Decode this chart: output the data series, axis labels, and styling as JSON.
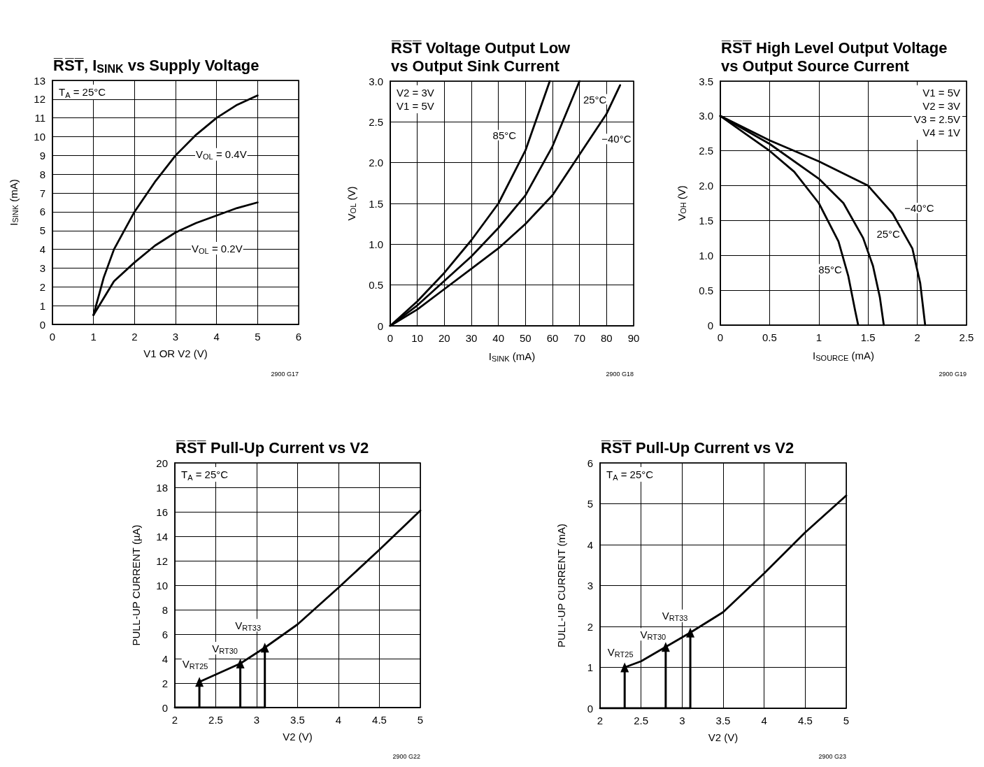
{
  "chart_data": [
    {
      "type": "line",
      "title": "R̅S̅T̅, I$_{SINK}$ vs Supply Voltage",
      "xlabel": "V1 OR V2 (V)",
      "ylabel": "I$_{SINK}$ (mA)",
      "xlim": [
        0,
        6
      ],
      "ylim": [
        0,
        13
      ],
      "xticks": [
        0,
        1,
        2,
        3,
        4,
        5,
        6
      ],
      "yticks": [
        0,
        1,
        2,
        3,
        4,
        5,
        6,
        7,
        8,
        9,
        10,
        11,
        12,
        13
      ],
      "grid": true,
      "series": [
        {
          "color": "#000000",
          "x": [
            1,
            1.25,
            1.5,
            2,
            2.5,
            3,
            3.5,
            4,
            4.5,
            5
          ],
          "values": [
            0.5,
            2.5,
            4,
            6,
            7.6,
            9,
            10.1,
            11,
            11.7,
            12.2
          ]
        },
        {
          "color": "#000000",
          "x": [
            1,
            1.5,
            2,
            2.5,
            3,
            3.5,
            4,
            4.5,
            5
          ],
          "values": [
            0.5,
            2.3,
            3.3,
            4.2,
            4.9,
            5.4,
            5.8,
            6.2,
            6.5
          ]
        }
      ],
      "annotations": [
        "T$_{A}$ = 25°C",
        "2900 G17",
        {
          "text": "V$_{OL}$ = 0.4V",
          "x": 3.5,
          "y": 10.1
        },
        {
          "text": "V$_{OL}$ = 0.2V",
          "x": 3.5,
          "y": 5.4
        }
      ]
    },
    {
      "type": "line",
      "title": "R̅S̅T̅ Voltage Output Low\nvs Output Sink Current",
      "xlabel": "I$_{SINK}$ (mA)",
      "ylabel": "V$_{OL}$ (V)",
      "xlim": [
        0,
        90
      ],
      "ylim": [
        0,
        3
      ],
      "xticks": [
        0,
        10,
        20,
        30,
        40,
        50,
        60,
        70,
        80,
        90
      ],
      "yticks": [
        0,
        {
          "value": 0.5,
          "label": "0.5"
        },
        {
          "value": 1,
          "label": "1.0"
        },
        {
          "value": 1.5,
          "label": "1.5"
        },
        {
          "value": 2,
          "label": "2.0"
        },
        {
          "value": 2.5,
          "label": "2.5"
        },
        {
          "value": 3,
          "label": "3.0"
        }
      ],
      "grid": true,
      "series": [
        {
          "color": "#000000",
          "x": [
            0,
            10,
            20,
            30,
            40,
            50,
            59
          ],
          "values": [
            0,
            0.3,
            0.65,
            1.05,
            1.5,
            2.15,
            3.0
          ]
        },
        {
          "color": "#000000",
          "x": [
            0,
            10,
            20,
            30,
            40,
            50,
            60,
            70
          ],
          "values": [
            0,
            0.25,
            0.55,
            0.85,
            1.2,
            1.6,
            2.2,
            3.0
          ]
        },
        {
          "color": "#000000",
          "x": [
            0,
            10,
            20,
            30,
            40,
            50,
            60,
            70,
            80,
            85
          ],
          "values": [
            0,
            0.2,
            0.45,
            0.7,
            0.95,
            1.25,
            1.6,
            2.1,
            2.6,
            2.95
          ]
        }
      ],
      "annotations": [
        "V2 = 3V\nV1 = 5V",
        "2900 G18",
        {
          "text": "85°C",
          "x": 50,
          "y": 2.15
        },
        {
          "text": "25°C",
          "x": 70,
          "y": 3.0
        },
        {
          "text": "−40°C",
          "x": 80,
          "y": 2.6
        }
      ]
    },
    {
      "type": "line",
      "title": "R̅S̅T̅ High Level Output Voltage\nvs Output Source Current",
      "xlabel": "I$_{SOURCE}$ (mA)",
      "ylabel": "V$_{OH}$ (V)",
      "xlim": [
        0,
        2.5
      ],
      "ylim": [
        0,
        3.5
      ],
      "xticks": [
        0,
        0.5,
        1,
        1.5,
        2,
        2.5
      ],
      "yticks": [
        0,
        {
          "value": 0.5,
          "label": "0.5"
        },
        {
          "value": 1,
          "label": "1.0"
        },
        {
          "value": 1.5,
          "label": "1.5"
        },
        {
          "value": 2,
          "label": "2.0"
        },
        {
          "value": 2.5,
          "label": "2.5"
        },
        {
          "value": 3,
          "label": "3.0"
        },
        {
          "value": 3.5,
          "label": "3.5"
        }
      ],
      "grid": true,
      "series": [
        {
          "color": "#000000",
          "x": [
            0,
            0.25,
            0.5,
            0.75,
            1.0,
            1.2,
            1.3,
            1.37,
            1.4
          ],
          "values": [
            3,
            2.75,
            2.5,
            2.2,
            1.75,
            1.2,
            0.7,
            0.2,
            0
          ]
        },
        {
          "color": "#000000",
          "x": [
            0,
            0.5,
            1.0,
            1.25,
            1.45,
            1.55,
            1.62,
            1.66
          ],
          "values": [
            3,
            2.6,
            2.1,
            1.75,
            1.25,
            0.85,
            0.4,
            0
          ]
        },
        {
          "color": "#000000",
          "x": [
            0,
            0.5,
            1.0,
            1.5,
            1.75,
            1.95,
            2.03,
            2.08
          ],
          "values": [
            3,
            2.65,
            2.35,
            2.0,
            1.6,
            1.1,
            0.6,
            0
          ]
        }
      ],
      "annotations": [
        "V1 = 5V\nV2 = 3V\nV3 = 2.5V\nV4 = 1V",
        "2900 G19",
        {
          "text": "85°C",
          "x": 1.3,
          "y": 0.7
        },
        {
          "text": "25°C",
          "x": 1.45,
          "y": 1.25
        },
        {
          "text": "−40°C",
          "x": 1.75,
          "y": 1.6
        }
      ]
    },
    {
      "type": "line",
      "title": "R̅S̅T̅ Pull-Up Current vs V2",
      "xlabel": "V2 (V)",
      "ylabel": "PULL-UP CURRENT (µA)",
      "xlim": [
        2,
        5
      ],
      "ylim": [
        0,
        20
      ],
      "xticks": [
        2,
        2.5,
        3,
        3.5,
        4,
        4.5,
        5
      ],
      "yticks": [
        0,
        2,
        4,
        6,
        8,
        10,
        12,
        14,
        16,
        18,
        20
      ],
      "grid": true,
      "series": [
        {
          "color": "#000000",
          "x": [
            2.3,
            2.5,
            2.8,
            3.1,
            3.5,
            4,
            4.5,
            5
          ],
          "values": [
            2.1,
            2.7,
            3.6,
            4.9,
            6.8,
            9.8,
            12.9,
            16.1
          ]
        },
        {
          "color": "#000000",
          "x": [
            2,
            3.1
          ],
          "values": [
            0,
            0
          ]
        },
        {
          "type": "lollipop",
          "marker": "triangle",
          "color": "#000000",
          "x": [
            2.3,
            2.8,
            3.1
          ],
          "values": [
            2.1,
            3.6,
            4.9
          ]
        }
      ],
      "annotations": [
        "T$_{A}$ = 25°C",
        "2900 G22",
        {
          "text": "V$_{RT25}$",
          "x": 2.3,
          "y": 2.1
        },
        {
          "text": "V$_{RT30}$",
          "x": 2.8,
          "y": 3.6
        },
        {
          "text": "V$_{RT33}$",
          "x": 3.1,
          "y": 4.9
        }
      ]
    },
    {
      "type": "line",
      "title": "R̅S̅T̅ Pull-Up Current vs V2",
      "xlabel": "V2 (V)",
      "ylabel": "PULL-UP CURRENT (mA)",
      "xlim": [
        2,
        5
      ],
      "ylim": [
        0,
        6
      ],
      "xticks": [
        2,
        2.5,
        3,
        3.5,
        4,
        4.5,
        5
      ],
      "yticks": [
        0,
        1,
        2,
        3,
        4,
        5,
        6
      ],
      "grid": true,
      "series": [
        {
          "color": "#000000",
          "x": [
            2.3,
            2.5,
            2.8,
            3.1,
            3.5,
            4,
            4.5,
            5
          ],
          "values": [
            1.0,
            1.15,
            1.5,
            1.85,
            2.35,
            3.3,
            4.3,
            5.2
          ]
        },
        {
          "color": "#000000",
          "x": [
            2,
            3.1
          ],
          "values": [
            0,
            0
          ]
        },
        {
          "type": "lollipop",
          "marker": "triangle",
          "color": "#000000",
          "x": [
            2.3,
            2.8,
            3.1
          ],
          "values": [
            1.0,
            1.5,
            1.85
          ]
        }
      ],
      "annotations": [
        "T$_{A}$ = 25°C",
        "2900 G23",
        {
          "text": "V$_{RT25}$",
          "x": 2.3,
          "y": 1.0
        },
        {
          "text": "V$_{RT30}$",
          "x": 2.8,
          "y": 1.5
        },
        {
          "text": "V$_{RT33}$",
          "x": 3.1,
          "y": 1.85
        }
      ]
    }
  ]
}
